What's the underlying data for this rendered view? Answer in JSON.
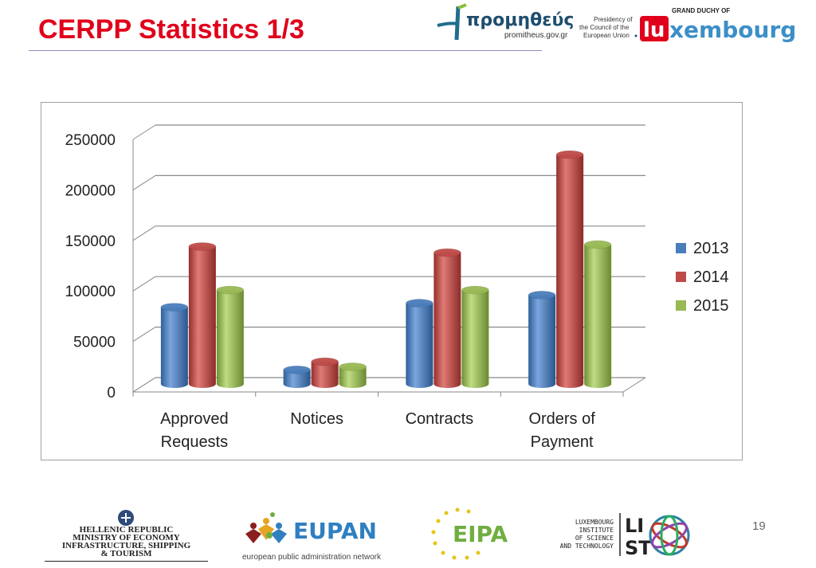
{
  "title": "CERPP Statistics 1/3",
  "page_number": "19",
  "header_logos": {
    "prometheus_name": "προμηθεύς",
    "prometheus_url": "promitheus.gov.gr",
    "presidency_line1": "Presidency of",
    "presidency_line2": "the Council of the",
    "presidency_line3": "European Union",
    "luxembourg_top": "GRAND DUCHY OF",
    "luxembourg_lu": "lu",
    "luxembourg_rest": "xembourg"
  },
  "footer_logos": {
    "hellenic_line1": "HELLENIC REPUBLIC",
    "hellenic_line2": "MINISTRY OF ECONOMY",
    "hellenic_line3": "INFRASTRUCTURE, SHIPPING",
    "hellenic_line4": "& TOURISM",
    "eupan_name": "EUPAN",
    "eupan_sub": "european public administration network",
    "eipa_name": "EIPA",
    "list_line1": "LUXEMBOURG",
    "list_line2": "INSTITUTE",
    "list_line3": "OF SCIENCE",
    "list_line4": "AND TECHNOLOGY",
    "list_mark_top": "LI",
    "list_mark_bottom": "ST"
  },
  "chart_data": {
    "type": "bar",
    "categories": [
      [
        "Approved",
        "Requests"
      ],
      [
        "Notices"
      ],
      [
        "Contracts"
      ],
      [
        "Orders of",
        "Payment"
      ]
    ],
    "series": [
      {
        "name": "2013",
        "values": [
          76000,
          14000,
          80000,
          88000
        ]
      },
      {
        "name": "2014",
        "values": [
          136000,
          22000,
          130000,
          227000
        ]
      },
      {
        "name": "2015",
        "values": [
          93000,
          17000,
          93000,
          138000
        ]
      }
    ],
    "colors": [
      "#4a7ebb",
      "#be4b48",
      "#98b954"
    ],
    "ylim": [
      0,
      250000
    ],
    "yticks": [
      "0",
      "50000",
      "100000",
      "150000",
      "200000",
      "250000"
    ],
    "grid": true,
    "legend_position": "right",
    "style": "3d-cylinder"
  }
}
